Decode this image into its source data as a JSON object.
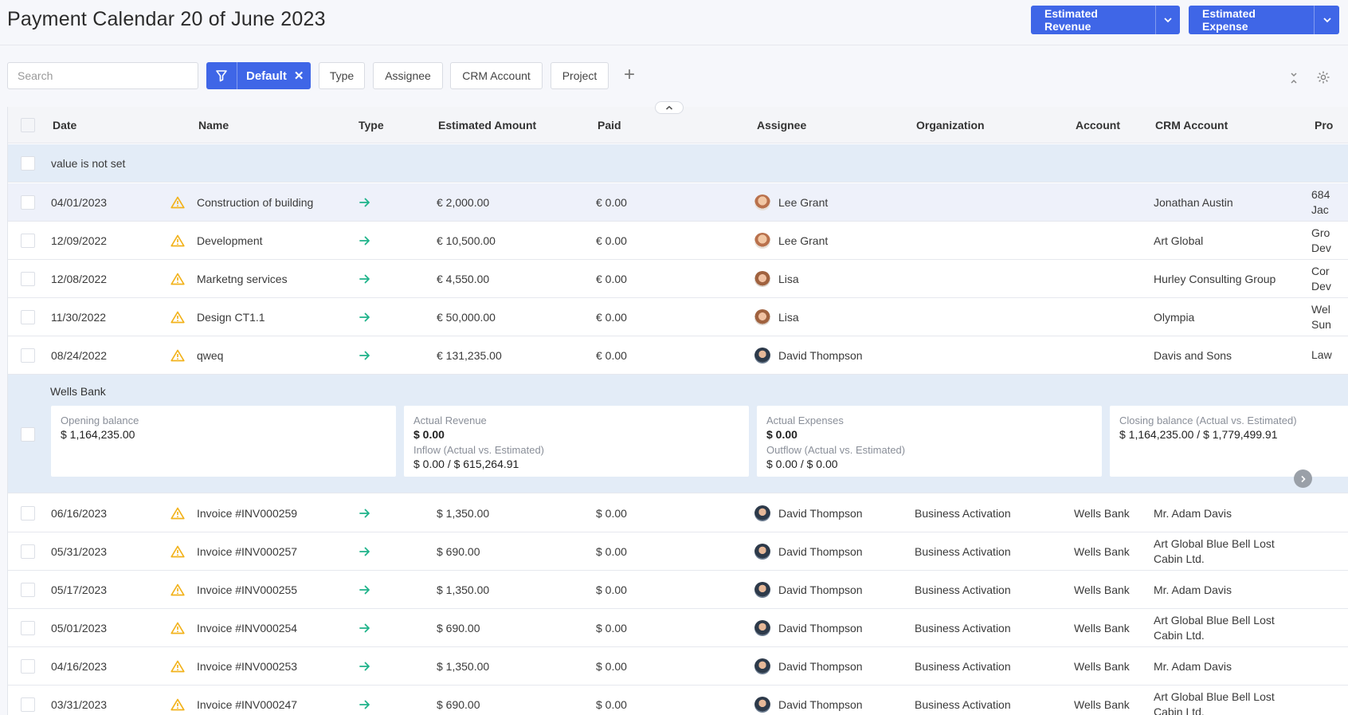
{
  "header": {
    "title": "Payment Calendar 20 of June 2023",
    "revenue_button": "Estimated Revenue",
    "expense_button": "Estimated Expense"
  },
  "toolbar": {
    "search_placeholder": "Search",
    "filter_label": "Default",
    "chips": [
      "Type",
      "Assignee",
      "CRM Account",
      "Project"
    ]
  },
  "columns": [
    "Date",
    "Name",
    "Type",
    "Estimated Amount",
    "Paid",
    "Assignee",
    "Organization",
    "Account",
    "CRM Account",
    "Pro"
  ],
  "group_unset": {
    "label": "value is not set",
    "rows": [
      {
        "date": "04/01/2023",
        "name": "Construction of building",
        "amount": "€ 2,000.00",
        "paid": "€ 0.00",
        "assignee": "Lee Grant",
        "avatar": "lee",
        "organization": "",
        "account": "",
        "crm": "Jonathan Austin",
        "project_l1": "684",
        "project_l2": "Jac"
      },
      {
        "date": "12/09/2022",
        "name": "Development",
        "amount": "€ 10,500.00",
        "paid": "€ 0.00",
        "assignee": "Lee Grant",
        "avatar": "lee",
        "organization": "",
        "account": "",
        "crm": "Art Global",
        "project_l1": "Gro",
        "project_l2": "Dev"
      },
      {
        "date": "12/08/2022",
        "name": "Marketng services",
        "amount": "€ 4,550.00",
        "paid": "€ 0.00",
        "assignee": "Lisa",
        "avatar": "lisa",
        "organization": "",
        "account": "",
        "crm": "Hurley Consulting Group",
        "project_l1": "Cor",
        "project_l2": "Dev"
      },
      {
        "date": "11/30/2022",
        "name": "Design CT1.1",
        "amount": "€ 50,000.00",
        "paid": "€ 0.00",
        "assignee": "Lisa",
        "avatar": "lisa",
        "organization": "",
        "account": "",
        "crm": "Olympia",
        "project_l1": "Wel",
        "project_l2": "Sun"
      },
      {
        "date": "08/24/2022",
        "name": "qweq",
        "amount": "€ 131,235.00",
        "paid": "€ 0.00",
        "assignee": "David Thompson",
        "avatar": "david",
        "organization": "",
        "account": "",
        "crm": "Davis and Sons",
        "project_l1": "Law",
        "project_l2": ""
      }
    ]
  },
  "group_bank": {
    "label": "Wells Bank",
    "opening_label": "Opening balance",
    "opening_value": "$ 1,164,235.00",
    "revenue_label": "Actual Revenue",
    "revenue_value": "$ 0.00",
    "inflow_label": "Inflow (Actual vs. Estimated)",
    "inflow_value": "$ 0.00 / $ 615,264.91",
    "expenses_label": "Actual Expenses",
    "expenses_value": "$ 0.00",
    "outflow_label": "Outflow (Actual vs. Estimated)",
    "outflow_value": "$ 0.00 / $ 0.00",
    "closing_label": "Closing balance (Actual vs. Estimated)",
    "closing_value": "$ 1,164,235.00 / $ 1,779,499.91",
    "rows": [
      {
        "date": "06/16/2023",
        "name": "Invoice #INV000259",
        "amount": "$ 1,350.00",
        "paid": "$ 0.00",
        "assignee": "David Thompson",
        "avatar": "david",
        "organization": "Business Activation",
        "account": "Wells Bank",
        "crm": "Mr. Adam Davis",
        "crm2": ""
      },
      {
        "date": "05/31/2023",
        "name": "Invoice #INV000257",
        "amount": "$ 690.00",
        "paid": "$ 0.00",
        "assignee": "David Thompson",
        "avatar": "david",
        "organization": "Business Activation",
        "account": "Wells Bank",
        "crm": "Art Global Blue Bell Lost",
        "crm2": "Cabin Ltd."
      },
      {
        "date": "05/17/2023",
        "name": "Invoice #INV000255",
        "amount": "$ 1,350.00",
        "paid": "$ 0.00",
        "assignee": "David Thompson",
        "avatar": "david",
        "organization": "Business Activation",
        "account": "Wells Bank",
        "crm": "Mr. Adam Davis",
        "crm2": ""
      },
      {
        "date": "05/01/2023",
        "name": "Invoice #INV000254",
        "amount": "$ 690.00",
        "paid": "$ 0.00",
        "assignee": "David Thompson",
        "avatar": "david",
        "organization": "Business Activation",
        "account": "Wells Bank",
        "crm": "Art Global Blue Bell Lost",
        "crm2": "Cabin Ltd."
      },
      {
        "date": "04/16/2023",
        "name": "Invoice #INV000253",
        "amount": "$ 1,350.00",
        "paid": "$ 0.00",
        "assignee": "David Thompson",
        "avatar": "david",
        "organization": "Business Activation",
        "account": "Wells Bank",
        "crm": "Mr. Adam Davis",
        "crm2": ""
      },
      {
        "date": "03/31/2023",
        "name": "Invoice #INV000247",
        "amount": "$ 690.00",
        "paid": "$ 0.00",
        "assignee": "David Thompson",
        "avatar": "david",
        "organization": "Business Activation",
        "account": "Wells Bank",
        "crm": "Art Global Blue Bell Lost",
        "crm2": "Cabin Ltd."
      }
    ]
  },
  "icons": {
    "warning": "warning-icon",
    "type": "arrow-right-icon",
    "filter": "filter-icon",
    "settings": "gear-icon",
    "collapse": "chevron-up-icon",
    "next": "chevron-right-icon"
  },
  "colors": {
    "accent": "#3f66e7",
    "warning": "#f2b21b",
    "income_arrow": "#1fb38a",
    "group_bg": "#e3ecf7"
  }
}
